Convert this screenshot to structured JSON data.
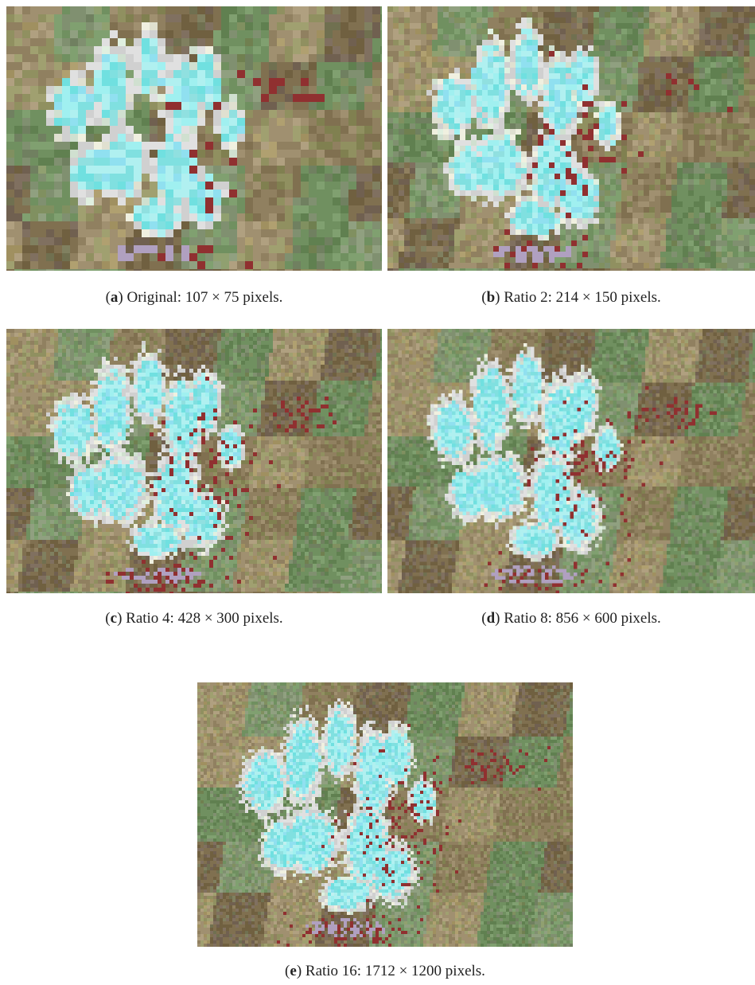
{
  "figure": {
    "panels": [
      {
        "label": "a",
        "caption": "Original: 107 × 75 pixels."
      },
      {
        "label": "b",
        "caption": "Ratio 2: 214 × 150 pixels."
      },
      {
        "label": "c",
        "caption": "Ratio 4: 428 × 300 pixels."
      },
      {
        "label": "d",
        "caption": "Ratio 8: 856 × 600 pixels."
      },
      {
        "label": "e",
        "caption": "Ratio 16: 1712 × 1200 pixels."
      }
    ]
  }
}
